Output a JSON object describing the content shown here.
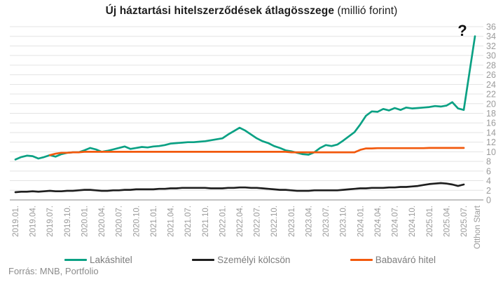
{
  "header": {
    "title_bold": "Új háztartási hitelszerződések átlagösszege",
    "title_normal": " (millió forint)"
  },
  "annotation": {
    "question_mark": "?"
  },
  "footer": {
    "source": "Forrás: MNB, Portfolio"
  },
  "chart_data": {
    "type": "line",
    "unit": "millió forint",
    "y_axis": {
      "min": 0,
      "max": 36,
      "step": 2,
      "side": "right",
      "ticks": [
        0,
        2,
        4,
        6,
        8,
        10,
        12,
        14,
        16,
        18,
        20,
        22,
        24,
        26,
        28,
        30,
        32,
        34,
        36
      ]
    },
    "x_tick_labels": [
      "2019.01.",
      "2019.04.",
      "2019.07.",
      "2019.10.",
      "2020.01.",
      "2020.04.",
      "2020.07.",
      "2020.10.",
      "2021.01.",
      "2021.04.",
      "2021.07.",
      "2021.10.",
      "2022.01.",
      "2022.04.",
      "2022.07.",
      "2022.10.",
      "2023.01.",
      "2023.04.",
      "2023.07.",
      "2023.10.",
      "2024.01.",
      "2024.04.",
      "2024.07.",
      "2024.10.",
      "2025.01.",
      "2025.04.",
      "2025.07."
    ],
    "x_tick_month_step": 3,
    "special_x_label": "Otthon Start",
    "months_span": "2019.01 - 2025.07, monthly",
    "grid": "horizontal",
    "legend_position": "bottom",
    "colors": {
      "grid": "#e3e3e3",
      "axis": "#9e9e9e",
      "tick_text": "#9b9b9b"
    },
    "series": [
      {
        "name": "Lakáshitel",
        "color": "#0ba184",
        "values": [
          8.4,
          8.9,
          9.2,
          9.1,
          8.6,
          8.9,
          9.3,
          9.0,
          9.5,
          9.8,
          9.9,
          9.9,
          10.3,
          10.8,
          10.5,
          10.0,
          10.2,
          10.5,
          10.8,
          11.1,
          10.6,
          10.8,
          11.0,
          10.9,
          11.1,
          11.2,
          11.4,
          11.7,
          11.8,
          11.9,
          12.0,
          12.0,
          12.1,
          12.2,
          12.4,
          12.6,
          12.8,
          13.6,
          14.3,
          15.0,
          14.4,
          13.6,
          12.8,
          12.2,
          11.8,
          11.2,
          10.8,
          10.3,
          10.1,
          9.8,
          9.5,
          9.4,
          9.9,
          10.8,
          11.4,
          11.2,
          11.5,
          12.3,
          13.2,
          14.1,
          15.7,
          17.5,
          18.4,
          18.3,
          18.9,
          18.6,
          19.1,
          18.7,
          19.2,
          19.0,
          19.1,
          19.2,
          19.3,
          19.5,
          19.4,
          19.6,
          20.3,
          19.0,
          18.7
        ],
        "otthon_start_value": 34.0
      },
      {
        "name": "Személyi kölcsön",
        "color": "#1f1f1f",
        "values": [
          1.6,
          1.7,
          1.7,
          1.8,
          1.7,
          1.8,
          1.9,
          1.8,
          1.8,
          1.9,
          1.9,
          2.0,
          2.1,
          2.1,
          2.0,
          1.9,
          1.9,
          2.0,
          2.0,
          2.1,
          2.1,
          2.2,
          2.2,
          2.2,
          2.2,
          2.3,
          2.3,
          2.4,
          2.4,
          2.5,
          2.5,
          2.5,
          2.5,
          2.5,
          2.4,
          2.4,
          2.4,
          2.5,
          2.5,
          2.6,
          2.6,
          2.5,
          2.5,
          2.4,
          2.3,
          2.2,
          2.1,
          2.1,
          2.0,
          1.9,
          1.9,
          1.9,
          2.0,
          2.0,
          2.0,
          2.0,
          2.0,
          2.1,
          2.2,
          2.3,
          2.4,
          2.4,
          2.5,
          2.5,
          2.5,
          2.6,
          2.6,
          2.7,
          2.7,
          2.8,
          2.9,
          3.1,
          3.3,
          3.4,
          3.5,
          3.4,
          3.2,
          2.9,
          3.2
        ],
        "otthon_start_value": null
      },
      {
        "name": "Babaváró hitel",
        "color": "#f2590d",
        "values": [
          null,
          null,
          null,
          null,
          null,
          null,
          9.3,
          9.6,
          9.8,
          9.8,
          9.9,
          9.9,
          10.0,
          10.0,
          10.0,
          10.0,
          10.0,
          10.0,
          10.0,
          10.0,
          10.0,
          10.0,
          10.0,
          10.0,
          10.0,
          10.0,
          10.0,
          10.0,
          10.0,
          10.0,
          10.0,
          10.0,
          10.0,
          10.0,
          10.0,
          10.0,
          10.0,
          10.0,
          10.0,
          10.0,
          10.0,
          10.0,
          10.0,
          10.0,
          10.0,
          10.0,
          10.0,
          10.0,
          9.9,
          9.9,
          9.9,
          9.9,
          9.9,
          9.9,
          9.9,
          9.9,
          9.9,
          9.9,
          9.9,
          9.9,
          10.4,
          10.7,
          10.7,
          10.75,
          10.75,
          10.75,
          10.75,
          10.75,
          10.75,
          10.75,
          10.75,
          10.75,
          10.8,
          10.8,
          10.8,
          10.8,
          10.8,
          10.8,
          10.8
        ],
        "otthon_start_value": null
      }
    ]
  }
}
